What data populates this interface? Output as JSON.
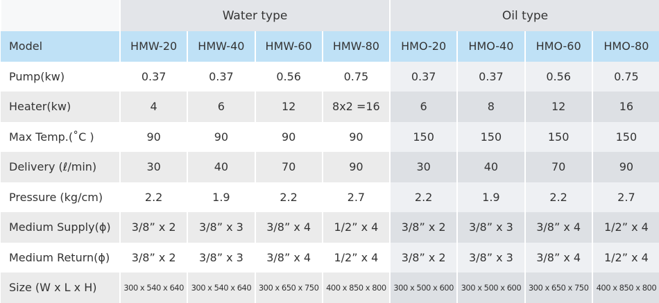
{
  "table": {
    "groups": [
      "Water type",
      "Oil type"
    ],
    "rows": [
      [
        "Model",
        "HMW-20",
        "HMW-40",
        "HMW-60",
        "HMW-80",
        "HMO-20",
        "HMO-40",
        "HMO-60",
        "HMO-80"
      ],
      [
        "Pump(kw)",
        "0.37",
        "0.37",
        "0.56",
        "0.75",
        "0.37",
        "0.37",
        "0.56",
        "0.75"
      ],
      [
        "Heater(kw)",
        "4",
        "6",
        "12",
        "8x2 =16",
        "6",
        "8",
        "12",
        "16"
      ],
      [
        "Max Temp.(˚C )",
        "90",
        "90",
        "90",
        "90",
        "150",
        "150",
        "150",
        "150"
      ],
      [
        "Delivery (ℓ/min)",
        "30",
        "40",
        "70",
        "90",
        "30",
        "40",
        "70",
        "90"
      ],
      [
        "Pressure (kg/cm)",
        "2.2",
        "1.9",
        "2.2",
        "2.7",
        "2.2",
        "1.9",
        "2.2",
        "2.7"
      ],
      [
        "Medium Supply(ϕ)",
        "3/8” x 2",
        "3/8” x 3",
        "3/8” x 4",
        "1/2” x 4",
        "3/8” x 2",
        "3/8” x 3",
        "3/8” x 4",
        "1/2” x 4"
      ],
      [
        "Medium Return(ϕ)",
        "3/8” x 2",
        "3/8” x 3",
        "3/8” x 4",
        "1/2” x 4",
        "3/8” x 2",
        "3/8” x 3",
        "3/8” x 4",
        "1/2” x 4"
      ],
      [
        "Size (W x L x H)",
        "300 x 540 x 640",
        "300 x 540 x 640",
        "300 x 650 x 750",
        "400 x 850 x 800",
        "300 x 500 x 600",
        "300 x 500 x 600",
        "300 x 650 x 750",
        "400 x 850 x 800"
      ]
    ]
  }
}
